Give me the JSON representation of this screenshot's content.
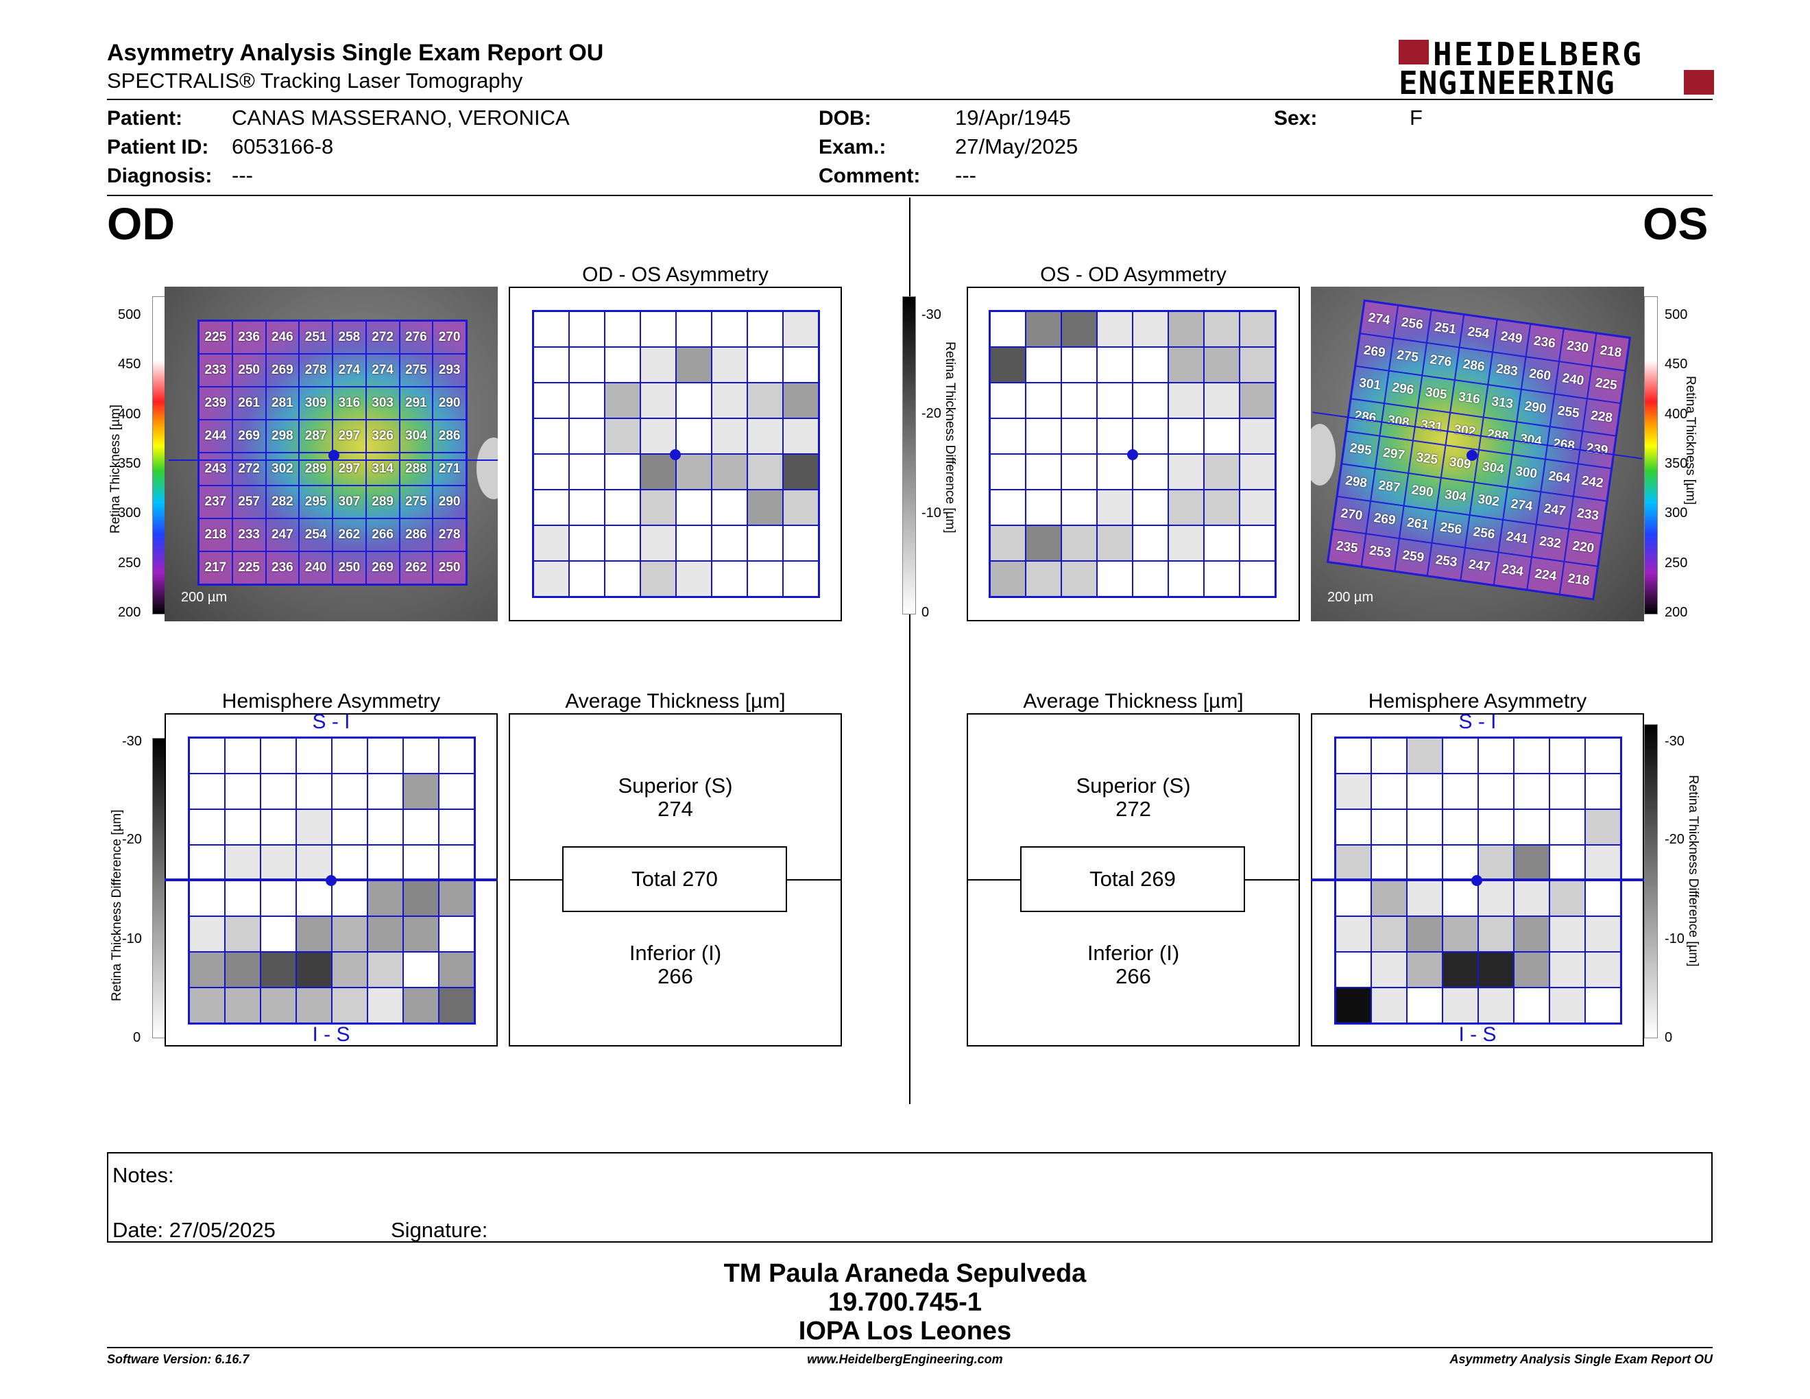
{
  "header": {
    "title": "Asymmetry Analysis Single Exam Report OU",
    "subtitle": "SPECTRALIS® Tracking Laser Tomography",
    "logo_line1": "HEIDELBERG",
    "logo_line2": "ENGINEERING",
    "logo_color": "#9e1b2c"
  },
  "patient": {
    "patient_label": "Patient:",
    "patient_value": "CANAS MASSERANO, VERONICA",
    "id_label": "Patient ID:",
    "id_value": "6053166-8",
    "diagnosis_label": "Diagnosis:",
    "diagnosis_value": "---",
    "dob_label": "DOB:",
    "dob_value": "19/Apr/1945",
    "exam_label": "Exam.:",
    "exam_value": "27/May/2025",
    "comment_label": "Comment:",
    "comment_value": "---",
    "sex_label": "Sex:",
    "sex_value": "F"
  },
  "od": {
    "eye_label": "OD",
    "asym_title": "OD - OS Asymmetry",
    "hemi_title": "Hemisphere Asymmetry",
    "avg_title": "Average Thickness [µm]",
    "superior_label": "Superior (S)",
    "superior_value": "274",
    "total_label": "Total 270",
    "inferior_label": "Inferior (I)",
    "inferior_value": "266",
    "scale_label": "200 µm",
    "thickness_grid": [
      [
        "225",
        "236",
        "246",
        "251",
        "258",
        "272",
        "276",
        "270"
      ],
      [
        "233",
        "250",
        "269",
        "278",
        "274",
        "274",
        "275",
        "293"
      ],
      [
        "239",
        "261",
        "281",
        "309",
        "316",
        "303",
        "291",
        "290"
      ],
      [
        "244",
        "269",
        "298",
        "287",
        "297",
        "326",
        "304",
        "286"
      ],
      [
        "243",
        "272",
        "302",
        "289",
        "297",
        "314",
        "288",
        "271"
      ],
      [
        "237",
        "257",
        "282",
        "295",
        "307",
        "289",
        "275",
        "290"
      ],
      [
        "218",
        "233",
        "247",
        "254",
        "262",
        "266",
        "286",
        "278"
      ],
      [
        "217",
        "225",
        "236",
        "240",
        "250",
        "269",
        "262",
        "250"
      ]
    ],
    "asym_shades": [
      [
        0,
        0,
        0,
        0,
        0,
        0,
        0,
        1
      ],
      [
        0,
        0,
        0,
        1,
        4,
        1,
        0,
        0
      ],
      [
        0,
        0,
        3,
        1,
        0,
        1,
        2,
        4
      ],
      [
        0,
        0,
        2,
        1,
        0,
        1,
        1,
        1
      ],
      [
        0,
        0,
        0,
        5,
        3,
        3,
        2,
        7
      ],
      [
        0,
        0,
        0,
        2,
        0,
        0,
        4,
        2
      ],
      [
        1,
        0,
        0,
        1,
        0,
        0,
        0,
        0
      ],
      [
        1,
        0,
        0,
        2,
        1,
        0,
        0,
        0
      ]
    ],
    "hemi_shades": [
      [
        0,
        0,
        0,
        0,
        0,
        0,
        0,
        0
      ],
      [
        0,
        0,
        0,
        0,
        0,
        0,
        4,
        0
      ],
      [
        0,
        0,
        0,
        1,
        0,
        0,
        0,
        0
      ],
      [
        0,
        1,
        1,
        1,
        0,
        0,
        0,
        0
      ],
      [
        0,
        0,
        0,
        0,
        0,
        4,
        5,
        4
      ],
      [
        1,
        2,
        0,
        4,
        3,
        4,
        4,
        0
      ],
      [
        4,
        5,
        7,
        8,
        3,
        2,
        0,
        4
      ],
      [
        3,
        3,
        3,
        3,
        2,
        1,
        4,
        6
      ]
    ]
  },
  "os": {
    "eye_label": "OS",
    "asym_title": "OS - OD Asymmetry",
    "hemi_title": "Hemisphere Asymmetry",
    "avg_title": "Average Thickness [µm]",
    "superior_label": "Superior (S)",
    "superior_value": "272",
    "total_label": "Total 269",
    "inferior_label": "Inferior (I)",
    "inferior_value": "266",
    "scale_label": "200 µm",
    "thickness_grid": [
      [
        "274",
        "256",
        "251",
        "254",
        "249",
        "236",
        "230",
        "218"
      ],
      [
        "269",
        "275",
        "276",
        "286",
        "283",
        "260",
        "240",
        "225"
      ],
      [
        "301",
        "296",
        "305",
        "316",
        "313",
        "290",
        "255",
        "228"
      ],
      [
        "286",
        "308",
        "331",
        "302",
        "288",
        "304",
        "268",
        "239"
      ],
      [
        "295",
        "297",
        "325",
        "309",
        "304",
        "300",
        "264",
        "242"
      ],
      [
        "298",
        "287",
        "290",
        "304",
        "302",
        "274",
        "247",
        "233"
      ],
      [
        "270",
        "269",
        "261",
        "256",
        "256",
        "241",
        "232",
        "220"
      ],
      [
        "235",
        "253",
        "259",
        "253",
        "247",
        "234",
        "224",
        "218"
      ]
    ],
    "asym_shades": [
      [
        0,
        5,
        6,
        1,
        1,
        3,
        2,
        2
      ],
      [
        7,
        0,
        0,
        0,
        0,
        3,
        3,
        2
      ],
      [
        0,
        0,
        0,
        0,
        0,
        1,
        1,
        3
      ],
      [
        0,
        0,
        0,
        0,
        0,
        0,
        0,
        1
      ],
      [
        0,
        0,
        0,
        0,
        0,
        1,
        2,
        1
      ],
      [
        0,
        0,
        0,
        1,
        0,
        2,
        2,
        1
      ],
      [
        2,
        5,
        2,
        2,
        0,
        1,
        0,
        0
      ],
      [
        3,
        2,
        2,
        0,
        0,
        0,
        0,
        0
      ]
    ],
    "hemi_shades": [
      [
        0,
        0,
        2,
        0,
        0,
        0,
        0,
        0
      ],
      [
        1,
        0,
        0,
        0,
        0,
        0,
        0,
        0
      ],
      [
        0,
        0,
        0,
        0,
        0,
        0,
        0,
        2
      ],
      [
        2,
        0,
        0,
        0,
        2,
        5,
        0,
        1
      ],
      [
        0,
        3,
        1,
        0,
        1,
        1,
        2,
        0
      ],
      [
        1,
        2,
        4,
        3,
        2,
        4,
        1,
        1
      ],
      [
        0,
        1,
        3,
        9,
        9,
        4,
        1,
        1
      ],
      [
        10,
        1,
        0,
        1,
        1,
        0,
        1,
        0
      ]
    ]
  },
  "axes": {
    "thickness_label": "Retina Thickness [µm]",
    "thickness_ticks": [
      "500",
      "450",
      "400",
      "350",
      "300",
      "250",
      "200"
    ],
    "diff_label": "Retina Thickness Difference [µm]",
    "diff_ticks": [
      "-30",
      "-20",
      "-10",
      "0"
    ],
    "si_top": "S - I",
    "is_bottom": "I - S"
  },
  "notes": {
    "notes_label": "Notes:",
    "date_label": "Date: 27/05/2025",
    "signature_label": "Signature:"
  },
  "stamp": {
    "line1": "TM Paula Araneda Sepulveda",
    "line2": "19.700.745-1",
    "line3": "IOPA Los Leones"
  },
  "footer": {
    "left": "Software Version: 6.16.7",
    "center": "www.HeidelbergEngineering.com",
    "right": "Asymmetry Analysis Single Exam Report OU"
  }
}
